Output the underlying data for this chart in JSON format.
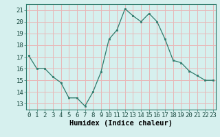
{
  "x": [
    0,
    1,
    2,
    3,
    4,
    5,
    6,
    7,
    8,
    9,
    10,
    11,
    12,
    13,
    14,
    15,
    16,
    17,
    18,
    19,
    20,
    21,
    22,
    23
  ],
  "y": [
    17.1,
    16.0,
    16.0,
    15.3,
    14.8,
    13.5,
    13.5,
    12.8,
    14.0,
    15.7,
    18.5,
    19.3,
    21.1,
    20.5,
    20.0,
    20.7,
    20.0,
    18.5,
    16.7,
    16.5,
    15.8,
    15.4,
    15.0,
    15.0
  ],
  "line_color": "#2d7a6b",
  "marker_color": "#2d7a6b",
  "bg_color": "#d6f0ee",
  "grid_color": "#e8b8b8",
  "xlabel": "Humidex (Indice chaleur)",
  "ylim": [
    12.5,
    21.5
  ],
  "yticks": [
    13,
    14,
    15,
    16,
    17,
    18,
    19,
    20,
    21
  ],
  "xticks": [
    0,
    1,
    2,
    3,
    4,
    5,
    6,
    7,
    8,
    9,
    10,
    11,
    12,
    13,
    14,
    15,
    16,
    17,
    18,
    19,
    20,
    21,
    22,
    23
  ],
  "xlabel_fontsize": 7.5,
  "tick_fontsize": 6.5,
  "xlim_left": -0.3,
  "xlim_right": 23.3
}
